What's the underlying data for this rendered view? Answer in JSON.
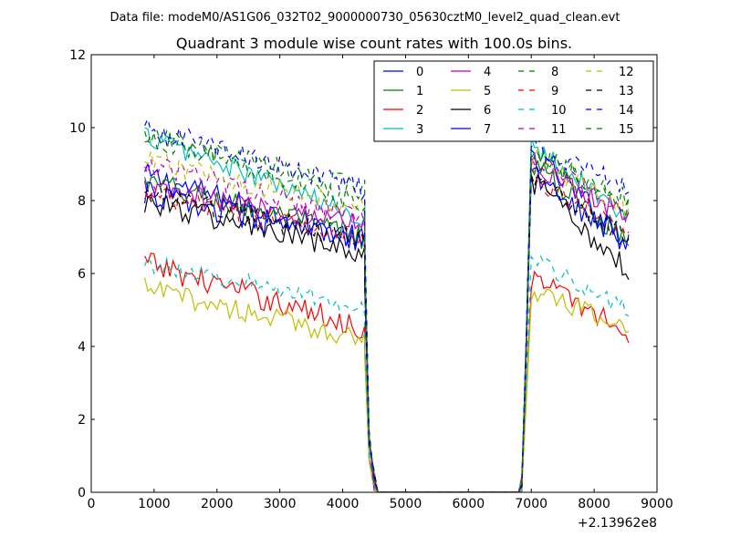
{
  "chart_data": {
    "type": "line",
    "suptitle": "Data file: modeM0/AS1G06_032T02_9000000730_05630cztM0_level2_quad_clean.evt",
    "title": "Quadrant 3 module wise count rates with 100.0s bins.",
    "xlabel": "",
    "ylabel": "",
    "x_offset_label": "+2.13962e8",
    "xlim": [
      0,
      9000
    ],
    "ylim": [
      0,
      12
    ],
    "xticks": [
      0,
      1000,
      2000,
      3000,
      4000,
      5000,
      6000,
      7000,
      8000,
      9000
    ],
    "yticks": [
      0,
      2,
      4,
      6,
      8,
      10,
      12
    ],
    "legend_position": "upper-right",
    "legend_columns": 4,
    "segment1": {
      "x_start": 850,
      "x_end": 4350,
      "step": 50
    },
    "gap": {
      "x": [
        4350,
        4420,
        4500,
        4560,
        6800,
        6850,
        6920
      ]
    },
    "segment2": {
      "x_start": 7000,
      "x_end": 8550,
      "step": 50
    },
    "series": [
      {
        "name": "0",
        "color": "#0000ff",
        "dash": "solid",
        "level1": [
          8.7,
          6.9
        ],
        "level2": [
          9.3,
          6.9
        ],
        "noise": 0.35
      },
      {
        "name": "1",
        "color": "#007f00",
        "dash": "solid",
        "level1": [
          8.5,
          7.0
        ],
        "level2": [
          9.0,
          6.9
        ],
        "noise": 0.35
      },
      {
        "name": "2",
        "color": "#ff0000",
        "dash": "solid",
        "level1": [
          6.3,
          4.5
        ],
        "level2": [
          5.9,
          4.4
        ],
        "noise": 0.35
      },
      {
        "name": "3",
        "color": "#00bfbf",
        "dash": "solid",
        "level1": [
          9.8,
          7.5
        ],
        "level2": [
          9.6,
          7.5
        ],
        "noise": 0.3
      },
      {
        "name": "4",
        "color": "#bf00bf",
        "dash": "solid",
        "level1": [
          8.3,
          7.4
        ],
        "level2": [
          9.0,
          7.6
        ],
        "noise": 0.3
      },
      {
        "name": "5",
        "color": "#bfbf00",
        "dash": "solid",
        "level1": [
          5.6,
          4.2
        ],
        "level2": [
          5.5,
          4.5
        ],
        "noise": 0.3
      },
      {
        "name": "6",
        "color": "#000000",
        "dash": "solid",
        "level1": [
          8.0,
          6.5
        ],
        "level2": [
          8.5,
          6.1
        ],
        "noise": 0.35
      },
      {
        "name": "7",
        "color": "#0000ff",
        "dash": "solid",
        "level1": [
          8.2,
          6.8
        ],
        "level2": [
          8.8,
          6.8
        ],
        "noise": 0.35
      },
      {
        "name": "8",
        "color": "#007f00",
        "dash": "dashed",
        "level1": [
          9.8,
          8.3
        ],
        "level2": [
          9.3,
          8.0
        ],
        "noise": 0.3
      },
      {
        "name": "9",
        "color": "#ff0000",
        "dash": "dashed",
        "level1": [
          8.2,
          7.0
        ],
        "level2": [
          8.6,
          7.2
        ],
        "noise": 0.3
      },
      {
        "name": "10",
        "color": "#00bfbf",
        "dash": "dashed",
        "level1": [
          6.3,
          5.1
        ],
        "level2": [
          6.4,
          5.0
        ],
        "noise": 0.25
      },
      {
        "name": "11",
        "color": "#bf00bf",
        "dash": "dashed",
        "level1": [
          9.0,
          7.5
        ],
        "level2": [
          9.3,
          7.6
        ],
        "noise": 0.3
      },
      {
        "name": "12",
        "color": "#bfbf00",
        "dash": "dashed",
        "level1": [
          9.1,
          7.8
        ],
        "level2": [
          9.2,
          7.7
        ],
        "noise": 0.3
      },
      {
        "name": "13",
        "color": "#000000",
        "dash": "dashed",
        "level1": [
          8.2,
          6.9
        ],
        "level2": [
          8.6,
          7.0
        ],
        "noise": 0.3
      },
      {
        "name": "14",
        "color": "#0000ff",
        "dash": "dashed",
        "level1": [
          10.0,
          8.3
        ],
        "level2": [
          9.5,
          8.4
        ],
        "noise": 0.3
      },
      {
        "name": "15",
        "color": "#007f00",
        "dash": "dashed",
        "level1": [
          9.8,
          7.9
        ],
        "level2": [
          9.4,
          7.8
        ],
        "noise": 0.3
      }
    ]
  }
}
